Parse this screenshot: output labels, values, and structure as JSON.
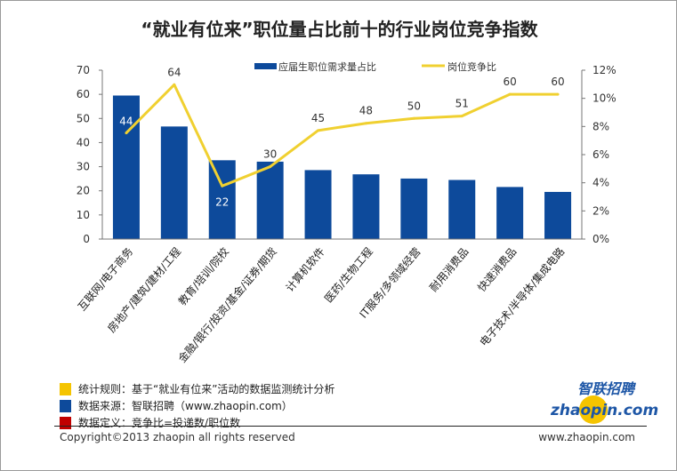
{
  "chart_data": {
    "type": "bar+line",
    "title": "“就业有位来”职位量占比前十的行业岗位竞争指数",
    "categories": [
      "互联网/电子商务",
      "房地产/建筑/建材/工程",
      "教育/培训/院校",
      "金融/银行/投资/基金/证券/期货",
      "计算机软件",
      "医药/生物工程",
      "IT服务/多领域经营",
      "耐用消费品",
      "快速消费品",
      "电子技术/半导体/集成电路"
    ],
    "series": [
      {
        "name": "应届生职位需求量占比",
        "type": "bar",
        "axis": "right",
        "values": [
          10.2,
          8.0,
          5.6,
          5.5,
          4.9,
          4.6,
          4.3,
          4.2,
          3.7,
          3.35
        ],
        "color": "#0d4a9b"
      },
      {
        "name": "岗位竞争比",
        "type": "line",
        "axis": "left",
        "values": [
          44,
          64,
          22,
          30,
          45,
          48,
          50,
          51,
          60,
          60
        ],
        "labels": [
          "44",
          "64",
          "22",
          "30",
          "45",
          "48",
          "50",
          "51",
          "60",
          "60"
        ],
        "color": "#f0d030"
      }
    ],
    "left_axis": {
      "ylim": [
        0,
        70
      ],
      "ticks": [
        "0",
        "10",
        "20",
        "30",
        "40",
        "50",
        "60",
        "70"
      ]
    },
    "right_axis": {
      "ylim": [
        0,
        12
      ],
      "ticks": [
        "0%",
        "2%",
        "4%",
        "6%",
        "8%",
        "10%",
        "12%"
      ]
    },
    "legend": "top",
    "grid": false
  },
  "notes": [
    {
      "text": "统计规则：基于“就业有位来”活动的数据监测统计分析",
      "color": "#f5c400"
    },
    {
      "text": "数据来源：智联招聘（www.zhaopin.com）",
      "color": "#0d4a9b"
    },
    {
      "text": "数据定义：竞争比=投递数/职位数",
      "color": "#c00000"
    }
  ],
  "logo": {
    "cn": "智联招聘",
    "en": "zhaopin.com"
  },
  "footer": {
    "copyright": "Copyright©2013 zhaopin all rights reserved",
    "site": "www.zhaopin.com"
  }
}
